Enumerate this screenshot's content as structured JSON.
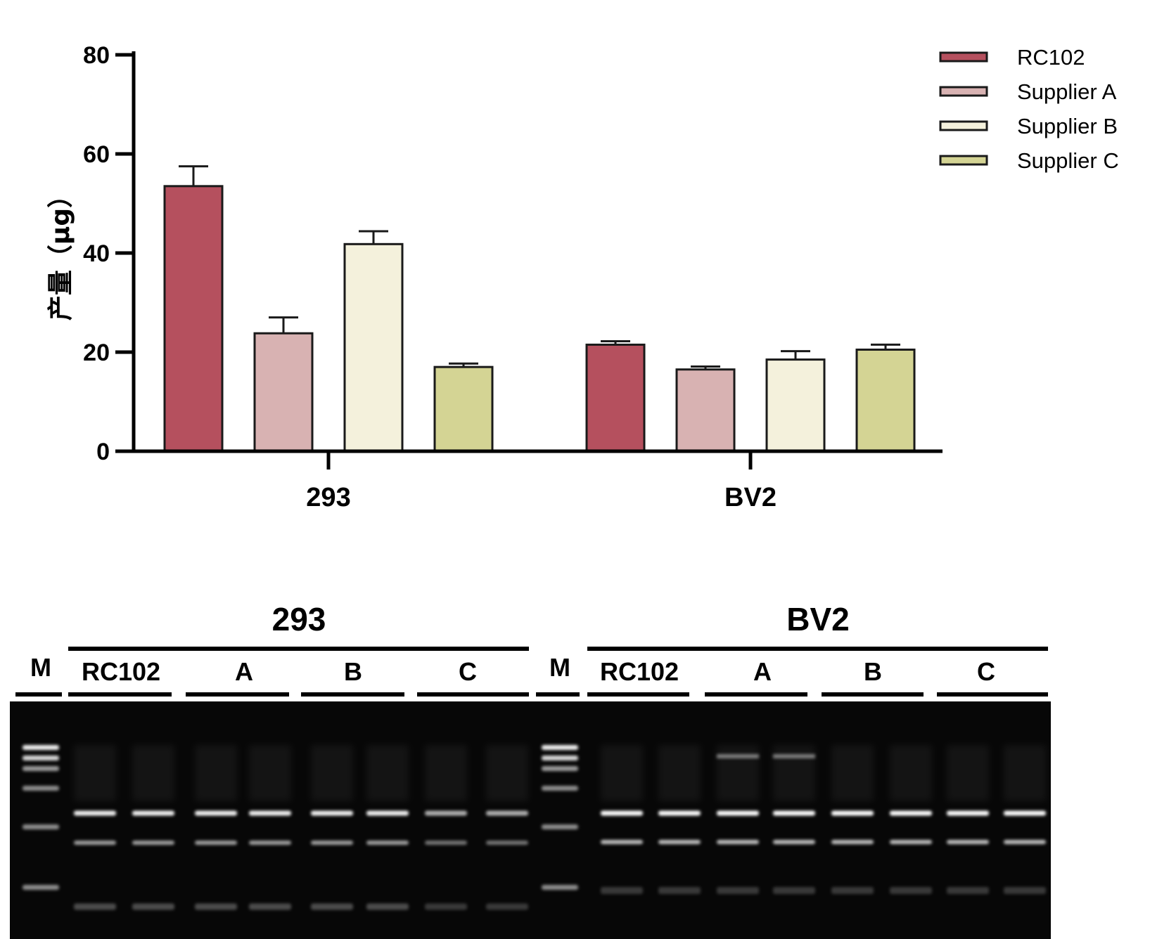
{
  "chart_data": {
    "type": "bar",
    "categories": [
      "293",
      "BV2"
    ],
    "series": [
      {
        "name": "RC102",
        "values": [
          53.5,
          21.5
        ],
        "errors": [
          4.0,
          0.7
        ],
        "color": "#b5505e"
      },
      {
        "name": "Supplier A",
        "values": [
          23.8,
          16.5
        ],
        "errors": [
          3.2,
          0.6
        ],
        "color": "#d8b2b2"
      },
      {
        "name": "Supplier B",
        "values": [
          41.8,
          18.5
        ],
        "errors": [
          2.6,
          1.7
        ],
        "color": "#f4f1dc"
      },
      {
        "name": "Supplier C",
        "values": [
          17.0,
          20.5
        ],
        "errors": [
          0.7,
          1.0
        ],
        "color": "#d4d494"
      }
    ],
    "title": "",
    "xlabel": "",
    "ylabel": "产量（μg）",
    "ylim": [
      0,
      80
    ],
    "yticks": [
      0,
      20,
      40,
      60,
      80
    ],
    "grid": false,
    "legend": "top-right"
  },
  "gel": {
    "panels": [
      {
        "title": "293",
        "marker_label": "M",
        "lane_groups": [
          "RC102",
          "A",
          "B",
          "C"
        ]
      },
      {
        "title": "BV2",
        "marker_label": "M",
        "lane_groups": [
          "RC102",
          "A",
          "B",
          "C"
        ]
      }
    ]
  }
}
